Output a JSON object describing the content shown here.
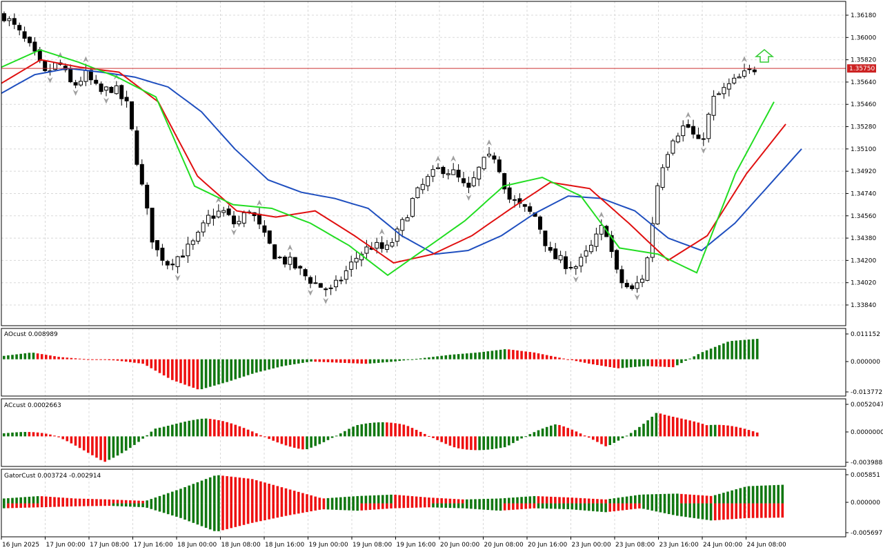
{
  "main_panel": {
    "y_ticks": [
      "1.36180",
      "1.36000",
      "1.35820",
      "1.35640",
      "1.35460",
      "1.35280",
      "1.35100",
      "1.34920",
      "1.34740",
      "1.34560",
      "1.34380",
      "1.34200",
      "1.34020",
      "1.33840"
    ],
    "current_price": "1.35750"
  },
  "ao_panel": {
    "title": "AOcust 0.008989",
    "y_ticks": [
      "0.011152",
      "0.000000",
      "-0.013772"
    ]
  },
  "ac_panel": {
    "title": "ACcust 0.0002663",
    "y_ticks": [
      "0.0052047",
      "0.0000000",
      "-0.0039888"
    ]
  },
  "gator_panel": {
    "title": "GatorCust 0.003724 -0.002914",
    "y_ticks": [
      "0.005851",
      "0.000000",
      "-0.005697"
    ]
  },
  "x_ticks": [
    "16 Jun 2025",
    "17 Jun 00:00",
    "17 Jun 08:00",
    "17 Jun 16:00",
    "18 Jun 00:00",
    "18 Jun 08:00",
    "18 Jun 16:00",
    "19 Jun 00:00",
    "19 Jun 08:00",
    "19 Jun 16:00",
    "20 Jun 00:00",
    "20 Jun 08:00",
    "20 Jun 16:00",
    "23 Jun 00:00",
    "23 Jun 08:00",
    "23 Jun 16:00",
    "24 Jun 00:00",
    "24 Jun 08:00"
  ],
  "colors": {
    "bull_candle": "#ffffff",
    "bear_candle": "#000000",
    "jaw": "#1f4fbf",
    "teeth": "#e01010",
    "lips": "#22dd22",
    "hist_up": "#117711",
    "hist_down": "#ee1111",
    "price_line": "#cc3333",
    "price_label_bg": "#cc2222",
    "grid": "#d8d8d8",
    "fractal": "#a0a0a0",
    "signal_arrow": "#33cc33"
  },
  "chart_data": [
    {
      "type": "candlestick",
      "x_categories": [
        "16 Jun 2025",
        "17 Jun 00:00",
        "17 Jun 08:00",
        "17 Jun 16:00",
        "18 Jun 00:00",
        "18 Jun 08:00",
        "18 Jun 16:00",
        "19 Jun 00:00",
        "19 Jun 08:00",
        "19 Jun 16:00",
        "20 Jun 00:00",
        "20 Jun 08:00",
        "20 Jun 16:00",
        "23 Jun 00:00",
        "23 Jun 08:00",
        "23 Jun 16:00",
        "24 Jun 00:00",
        "24 Jun 08:00"
      ],
      "ylim": [
        1.3375,
        1.3626
      ],
      "close_path": [
        1.3618,
        1.3605,
        1.359,
        1.357,
        1.358,
        1.356,
        1.357,
        1.3555,
        1.356,
        1.3545,
        1.3485,
        1.343,
        1.3418,
        1.3425,
        1.3435,
        1.3455,
        1.346,
        1.3448,
        1.3462,
        1.344,
        1.3422,
        1.3418,
        1.3408,
        1.34,
        1.3395,
        1.341,
        1.3425,
        1.3432,
        1.3428,
        1.3445,
        1.347,
        1.3485,
        1.3495,
        1.349,
        1.3475,
        1.3498,
        1.3505,
        1.347,
        1.3462,
        1.3455,
        1.3425,
        1.3418,
        1.3415,
        1.343,
        1.345,
        1.3405,
        1.3395,
        1.341,
        1.349,
        1.352,
        1.353,
        1.3512,
        1.355,
        1.356,
        1.3568,
        1.3575
      ],
      "jaw": [
        1.3555,
        1.357,
        1.3575,
        1.3572,
        1.3568,
        1.356,
        1.354,
        1.351,
        1.3485,
        1.3475,
        1.347,
        1.3462,
        1.344,
        1.3425,
        1.3428,
        1.344,
        1.3458,
        1.3472,
        1.347,
        1.346,
        1.3438,
        1.3428,
        1.345,
        1.348,
        1.351
      ],
      "teeth": [
        1.3563,
        1.3582,
        1.3576,
        1.3572,
        1.3548,
        1.3488,
        1.346,
        1.3455,
        1.346,
        1.344,
        1.3418,
        1.3425,
        1.344,
        1.3462,
        1.3483,
        1.3478,
        1.345,
        1.342,
        1.344,
        1.349,
        1.353
      ],
      "lips": [
        1.3576,
        1.359,
        1.358,
        1.3568,
        1.3552,
        1.348,
        1.3465,
        1.3462,
        1.345,
        1.3432,
        1.3408,
        1.343,
        1.3452,
        1.348,
        1.3487,
        1.3472,
        1.343,
        1.3425,
        1.341,
        1.349,
        1.3548
      ],
      "current_price": 1.3575
    },
    {
      "type": "bar",
      "name": "AOcust",
      "ylim": [
        -0.013772,
        0.011152
      ],
      "last_value": 0.008989
    },
    {
      "type": "bar",
      "name": "ACcust",
      "ylim": [
        -0.0039888,
        0.0052047
      ],
      "last_value": 0.0002663
    },
    {
      "type": "bar",
      "name": "GatorCust",
      "ylim": [
        -0.005697,
        0.005851
      ],
      "values": [
        0.003724,
        -0.002914
      ]
    }
  ]
}
